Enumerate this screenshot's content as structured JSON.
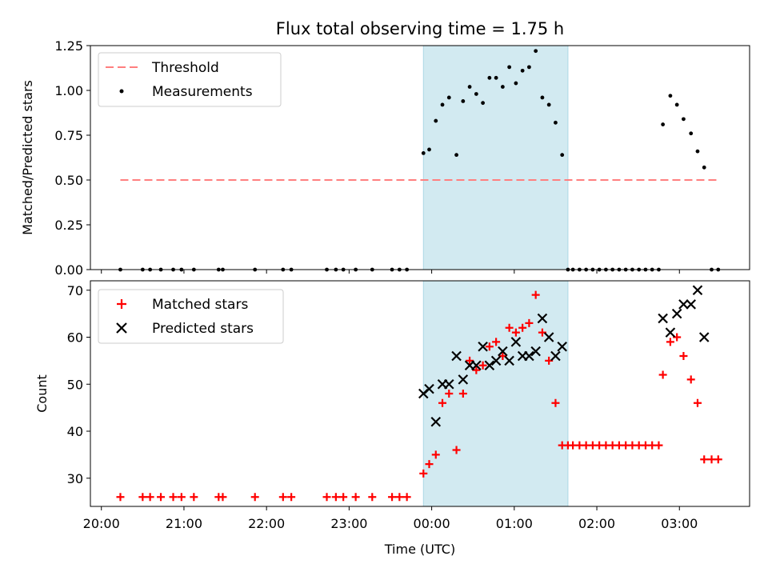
{
  "title": "Flux total observing time = 1.75 h",
  "colors": {
    "threshold": "#ff7f7f",
    "measurement": "#000000",
    "matched": "#ff0000",
    "predicted": "#000000",
    "span": "#add8e6"
  },
  "chart_data": [
    {
      "type": "scatter",
      "ylabel": "Matched/Predicted stars",
      "xlim_hours": [
        19.867,
        27.85
      ],
      "ylim": [
        0,
        1.25
      ],
      "yticks": [
        0.0,
        0.25,
        0.5,
        0.75,
        1.0,
        1.25
      ],
      "ytick_labels": [
        "0.00",
        "0.25",
        "0.50",
        "0.75",
        "1.00",
        "1.25"
      ],
      "xticks_hours": [
        20,
        21,
        22,
        23,
        24,
        25,
        26,
        27
      ],
      "highlight_span_hours": [
        23.9,
        25.65
      ],
      "legend": {
        "placement": "upper-left",
        "entries": [
          "Threshold",
          "Measurements"
        ]
      },
      "threshold": {
        "name": "Threshold",
        "y": 0.5,
        "x_from": 20.23,
        "x_to": 27.47
      },
      "measurements": {
        "name": "Measurements",
        "x": [
          20.23,
          20.5,
          20.59,
          20.72,
          20.87,
          20.97,
          21.12,
          21.42,
          21.47,
          21.86,
          22.2,
          22.3,
          22.73,
          22.84,
          22.93,
          23.08,
          23.28,
          23.52,
          23.61,
          23.7,
          23.9,
          23.97,
          24.05,
          24.13,
          24.21,
          24.3,
          24.38,
          24.46,
          24.54,
          24.62,
          24.7,
          24.78,
          24.86,
          24.94,
          25.02,
          25.1,
          25.18,
          25.26,
          25.34,
          25.42,
          25.5,
          25.58,
          25.65,
          25.71,
          25.79,
          25.87,
          25.95,
          26.03,
          26.11,
          26.19,
          26.27,
          26.35,
          26.43,
          26.51,
          26.59,
          26.67,
          26.75,
          26.8,
          26.89,
          26.97,
          27.05,
          27.14,
          27.22,
          27.3,
          27.39,
          27.47
        ],
        "y": [
          0,
          0,
          0,
          0,
          0,
          0,
          0,
          0,
          0,
          0,
          0,
          0,
          0,
          0,
          0,
          0,
          0,
          0,
          0,
          0,
          0.65,
          0.67,
          0.83,
          0.92,
          0.96,
          0.64,
          0.94,
          1.02,
          0.98,
          0.93,
          1.07,
          1.07,
          1.02,
          1.13,
          1.04,
          1.11,
          1.13,
          1.22,
          0.96,
          0.92,
          0.82,
          0.64,
          0,
          0,
          0,
          0,
          0,
          0,
          0,
          0,
          0,
          0,
          0,
          0,
          0,
          0,
          0,
          0.81,
          0.97,
          0.92,
          0.84,
          0.76,
          0.66,
          0.57,
          0,
          0
        ]
      }
    },
    {
      "type": "scatter",
      "xlabel": "Time (UTC)",
      "ylabel": "Count",
      "xlim_hours": [
        19.867,
        27.85
      ],
      "ylim": [
        24,
        72
      ],
      "yticks": [
        30,
        40,
        50,
        60,
        70
      ],
      "ytick_labels": [
        "30",
        "40",
        "50",
        "60",
        "70"
      ],
      "xticks_hours": [
        20,
        21,
        22,
        23,
        24,
        25,
        26,
        27
      ],
      "xtick_labels": [
        "20:00",
        "21:00",
        "22:00",
        "23:00",
        "00:00",
        "01:00",
        "02:00",
        "03:00"
      ],
      "highlight_span_hours": [
        23.9,
        25.65
      ],
      "legend": {
        "placement": "upper-left",
        "entries": [
          "Matched stars",
          "Predicted stars"
        ]
      },
      "matched": {
        "name": "Matched stars",
        "x": [
          20.23,
          20.5,
          20.59,
          20.72,
          20.87,
          20.97,
          21.12,
          21.42,
          21.47,
          21.86,
          22.2,
          22.3,
          22.73,
          22.84,
          22.93,
          23.08,
          23.28,
          23.52,
          23.61,
          23.7,
          23.9,
          23.97,
          24.05,
          24.13,
          24.21,
          24.3,
          24.38,
          24.46,
          24.54,
          24.62,
          24.7,
          24.78,
          24.86,
          24.94,
          25.02,
          25.1,
          25.18,
          25.26,
          25.34,
          25.42,
          25.5,
          25.58,
          25.65,
          25.71,
          25.79,
          25.87,
          25.95,
          26.03,
          26.11,
          26.19,
          26.27,
          26.35,
          26.43,
          26.51,
          26.59,
          26.67,
          26.75,
          26.8,
          26.89,
          26.97,
          27.05,
          27.14,
          27.22,
          27.3,
          27.39,
          27.47
        ],
        "y": [
          26,
          26,
          26,
          26,
          26,
          26,
          26,
          26,
          26,
          26,
          26,
          26,
          26,
          26,
          26,
          26,
          26,
          26,
          26,
          26,
          31,
          33,
          35,
          46,
          48,
          36,
          48,
          55,
          53,
          54,
          58,
          59,
          56,
          62,
          61,
          62,
          63,
          69,
          61,
          55,
          46,
          37,
          37,
          37,
          37,
          37,
          37,
          37,
          37,
          37,
          37,
          37,
          37,
          37,
          37,
          37,
          37,
          52,
          59,
          60,
          56,
          51,
          46,
          34,
          34,
          34
        ]
      },
      "predicted": {
        "name": "Predicted stars",
        "x": [
          23.9,
          23.97,
          24.05,
          24.13,
          24.21,
          24.3,
          24.38,
          24.46,
          24.54,
          24.62,
          24.7,
          24.78,
          24.86,
          24.94,
          25.02,
          25.1,
          25.18,
          25.26,
          25.34,
          25.42,
          25.5,
          25.58,
          26.8,
          26.89,
          26.97,
          27.05,
          27.14,
          27.22,
          27.3
        ],
        "y": [
          48,
          49,
          42,
          50,
          50,
          56,
          51,
          54,
          54,
          58,
          54,
          55,
          57,
          55,
          59,
          56,
          56,
          57,
          64,
          60,
          56,
          58,
          64,
          61,
          65,
          67,
          67,
          70,
          60
        ]
      }
    }
  ]
}
